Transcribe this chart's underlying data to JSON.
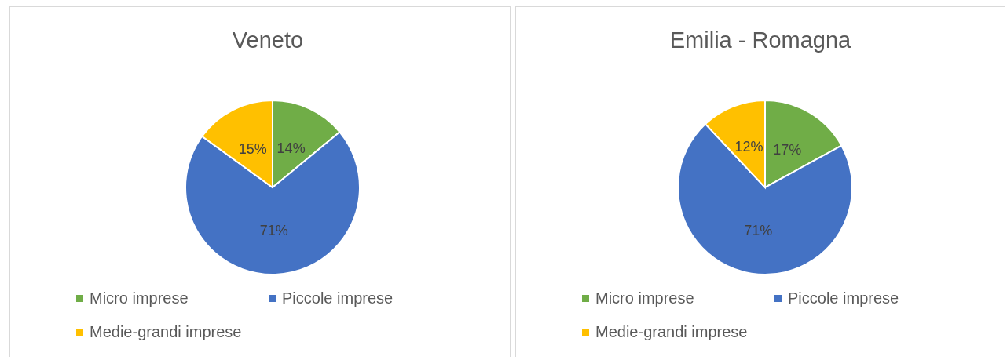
{
  "chart_data": [
    {
      "type": "pie",
      "title": "Veneto",
      "categories": [
        "Micro imprese",
        "Piccole imprese",
        "Medie-grandi imprese"
      ],
      "values": [
        14,
        71,
        15
      ],
      "colors": [
        "#70ad47",
        "#4472c4",
        "#ffc000"
      ],
      "value_labels": [
        "14%",
        "71%",
        "15%"
      ],
      "legend": "bottom"
    },
    {
      "type": "pie",
      "title": "Emilia - Romagna",
      "categories": [
        "Micro imprese",
        "Piccole imprese",
        "Medie-grandi imprese"
      ],
      "values": [
        17,
        71,
        12
      ],
      "colors": [
        "#70ad47",
        "#4472c4",
        "#ffc000"
      ],
      "value_labels": [
        "17%",
        "71%",
        "12%"
      ],
      "legend": "bottom"
    }
  ]
}
